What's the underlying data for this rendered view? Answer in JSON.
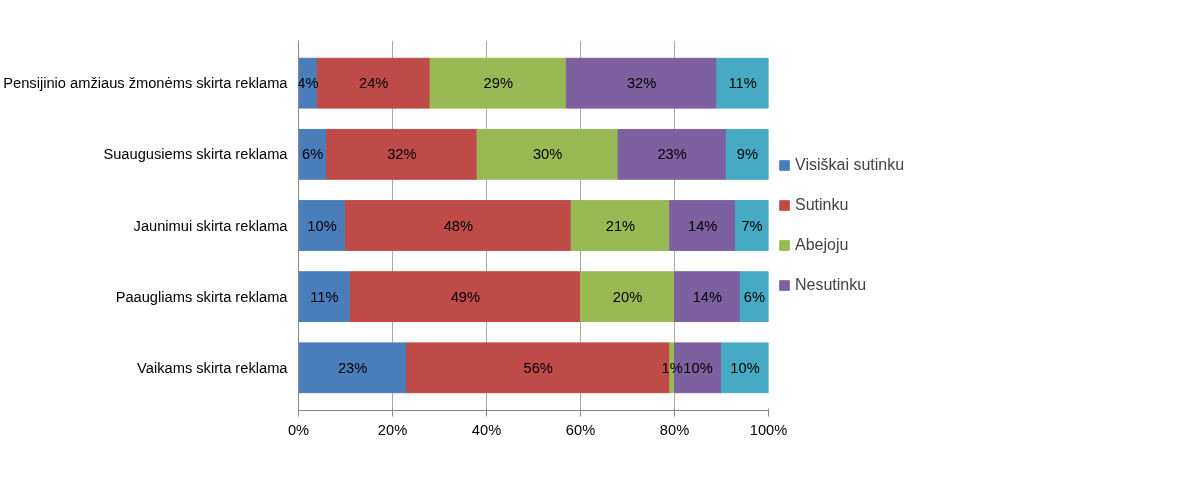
{
  "chart_data": {
    "type": "bar",
    "orientation": "horizontal",
    "stacked": true,
    "categories": [
      "Pensijinio amžiaus žmonėms skirta reklama",
      "Suaugusiems skirta reklama",
      "Jaunimui skirta reklama",
      "Paaugliams skirta reklama",
      "Vaikams skirta reklama"
    ],
    "series": [
      {
        "name": "Visiškai sutinku",
        "color": "#4a7ebb",
        "values": [
          4,
          6,
          10,
          11,
          23
        ],
        "value_labels": [
          "4%",
          "6%",
          "10%",
          "11%",
          "23%"
        ]
      },
      {
        "name": "Sutinku",
        "color": "#be4b48",
        "values": [
          24,
          32,
          48,
          49,
          56
        ],
        "value_labels": [
          "24%",
          "32%",
          "48%",
          "49%",
          "56%"
        ]
      },
      {
        "name": "Abejoju",
        "color": "#98b954",
        "values": [
          29,
          30,
          21,
          20,
          1
        ],
        "value_labels": [
          "29%",
          "30%",
          "21%",
          "20%",
          "1%"
        ]
      },
      {
        "name": "Nesutinku",
        "color": "#7d60a0",
        "values": [
          32,
          23,
          14,
          14,
          10
        ],
        "value_labels": [
          "32%",
          "23%",
          "14%",
          "14%",
          "10%"
        ]
      },
      {
        "color": "#46aac5",
        "values": [
          11,
          9,
          7,
          6,
          10
        ],
        "value_labels": [
          "11%",
          "9%",
          "7%",
          "6%",
          "10%"
        ]
      }
    ],
    "xlim": [
      0,
      100
    ],
    "xticks": [
      {
        "value": 0,
        "label": "0%"
      },
      {
        "value": 20,
        "label": "20%"
      },
      {
        "value": 40,
        "label": "40%"
      },
      {
        "value": 60,
        "label": "60%"
      },
      {
        "value": 80,
        "label": "80%"
      },
      {
        "value": 100,
        "label": "100%"
      }
    ],
    "grid": "x",
    "legend": "right"
  }
}
